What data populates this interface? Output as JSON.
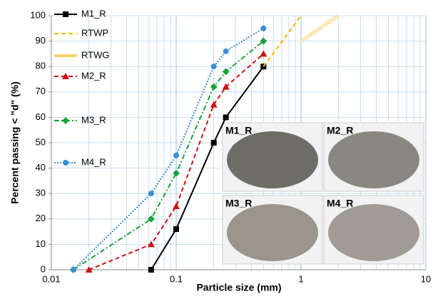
{
  "chart_data": {
    "type": "line",
    "x_label": "Particle size (mm)",
    "y_label": "Percent passing < \"d\" (%)",
    "xscale": "log",
    "xlim": [
      0.01,
      10
    ],
    "xticks": [
      0.01,
      0.1,
      1,
      10
    ],
    "ylim": [
      0,
      100
    ],
    "yticks": [
      0,
      10,
      20,
      30,
      40,
      50,
      60,
      70,
      80,
      90,
      100
    ],
    "grid": true,
    "series": [
      {
        "name": "M1_R",
        "color": "#000000",
        "line_style": "solid",
        "marker": "square",
        "x": [
          0.063,
          0.1,
          0.2,
          0.25,
          0.5
        ],
        "values": [
          0,
          16,
          50,
          60,
          80
        ]
      },
      {
        "name": "RTWP",
        "color": "#f5b800",
        "line_style": "dashed",
        "marker": "none",
        "x": [
          0.5,
          1
        ],
        "values": [
          80,
          100
        ]
      },
      {
        "name": "RTWG",
        "color": "#f5d36a",
        "line_style": "double",
        "marker": "none",
        "x": [
          1,
          2
        ],
        "values": [
          90,
          100
        ]
      },
      {
        "name": "M2_R",
        "color": "#cc1111",
        "line_style": "dashed",
        "marker": "triangle",
        "x": [
          0.02,
          0.063,
          0.1,
          0.2,
          0.25,
          0.5
        ],
        "values": [
          0,
          10,
          25,
          65,
          72,
          85
        ]
      },
      {
        "name": "M3_R",
        "color": "#1aa33a",
        "line_style": "dashdot",
        "marker": "diamond",
        "x": [
          0.015,
          0.063,
          0.1,
          0.2,
          0.25,
          0.5
        ],
        "values": [
          0,
          20,
          38,
          72,
          78,
          90
        ]
      },
      {
        "name": "M4_R",
        "color": "#3a8fd0",
        "line_style": "dotted",
        "marker": "circle",
        "x": [
          0.015,
          0.063,
          0.1,
          0.2,
          0.25,
          0.5
        ],
        "values": [
          0,
          30,
          45,
          80,
          86,
          95
        ]
      }
    ],
    "annotations": [
      "M1_R",
      "M2_R",
      "M3_R",
      "M4_R"
    ]
  }
}
